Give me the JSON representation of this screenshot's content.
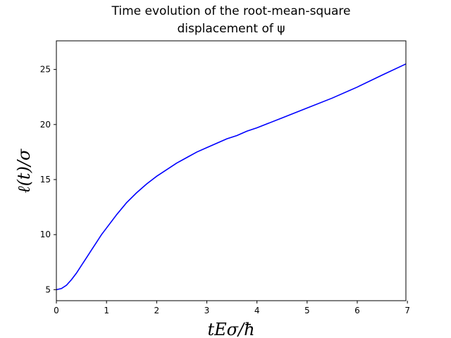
{
  "chart_data": {
    "type": "line",
    "title": "Time evolution of the root-mean-square displacement of ψ",
    "title_lines": [
      "Time evolution of the root-mean-square",
      "displacement of ψ"
    ],
    "xlabel": "tEσ/ħ",
    "ylabel": "ℓ(t)/σ",
    "xlim": [
      0,
      6.97
    ],
    "ylim": [
      4.0,
      27.6
    ],
    "xticks": [
      0,
      1,
      2,
      3,
      4,
      5,
      6,
      7
    ],
    "yticks": [
      5,
      10,
      15,
      20,
      25
    ],
    "grid": false,
    "legend": "none",
    "series": [
      {
        "color": "#0000ff",
        "x": [
          0,
          0.1,
          0.2,
          0.3,
          0.4,
          0.5,
          0.6,
          0.7,
          0.8,
          0.9,
          1.0,
          1.2,
          1.4,
          1.6,
          1.8,
          2.0,
          2.2,
          2.4,
          2.6,
          2.8,
          3.0,
          3.2,
          3.4,
          3.6,
          3.8,
          4.0,
          4.5,
          5.0,
          5.5,
          6.0,
          6.5,
          6.97
        ],
        "y": [
          5.0,
          5.1,
          5.4,
          5.9,
          6.5,
          7.2,
          7.9,
          8.6,
          9.3,
          10.0,
          10.6,
          11.8,
          12.9,
          13.8,
          14.6,
          15.3,
          15.9,
          16.5,
          17.0,
          17.5,
          17.9,
          18.3,
          18.7,
          19.0,
          19.4,
          19.7,
          20.6,
          21.5,
          22.4,
          23.4,
          24.5,
          25.5
        ]
      }
    ]
  }
}
